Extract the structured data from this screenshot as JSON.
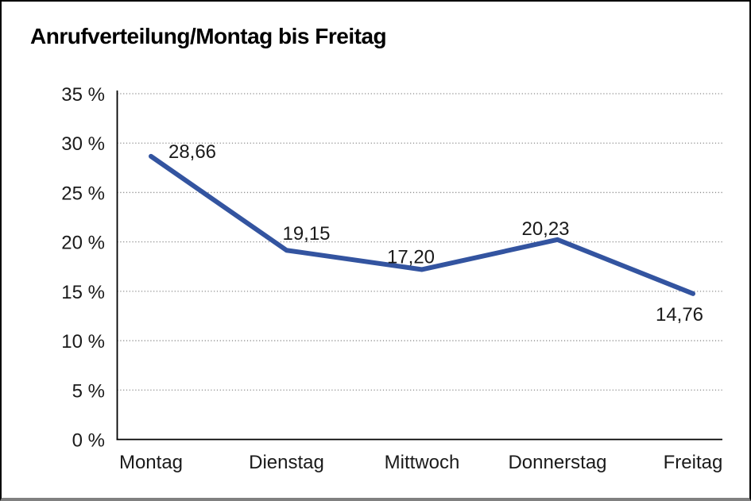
{
  "chart_data": {
    "type": "line",
    "title": "Anrufverteilung/Montag bis Freitag",
    "categories": [
      "Montag",
      "Dienstag",
      "Mittwoch",
      "Donnerstag",
      "Freitag"
    ],
    "series": [
      {
        "name": "Anrufverteilung",
        "values": [
          28.66,
          19.15,
          17.2,
          20.23,
          14.76
        ]
      }
    ],
    "value_labels": [
      "28,66",
      "19,15",
      "17,20",
      "20,23",
      "14,76"
    ],
    "yticks": [
      {
        "value": 0,
        "label": "0 %"
      },
      {
        "value": 5,
        "label": "5 %"
      },
      {
        "value": 10,
        "label": "10 %"
      },
      {
        "value": 15,
        "label": "15 %"
      },
      {
        "value": 20,
        "label": "20 %"
      },
      {
        "value": 25,
        "label": "25 %"
      },
      {
        "value": 30,
        "label": "30 %"
      },
      {
        "value": 35,
        "label": "35 %"
      }
    ],
    "ylim": [
      0,
      35
    ],
    "xlabel": "",
    "ylabel": "",
    "grid": "horizontal-dotted",
    "legend": "none",
    "colors": {
      "line": "#3354A0",
      "data_label": "#1a1a1a",
      "tick_label": "#1a1a1a",
      "axis": "#000000",
      "gridline": "#8a8a8a",
      "background": "#ffffff"
    }
  }
}
